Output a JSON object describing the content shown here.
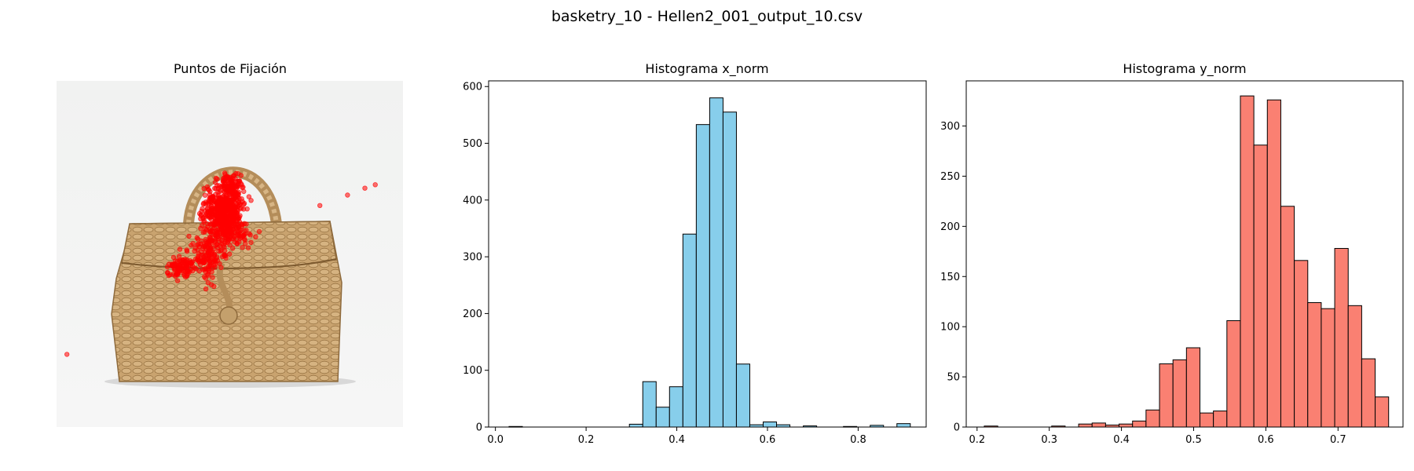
{
  "figure": {
    "suptitle": "basketry_10 - Hellen2_001_output_10.csv"
  },
  "chart_data": [
    {
      "type": "scatter",
      "title": "Puntos de Fijación",
      "axes_visible": false,
      "background_image": "wicker basket with handle on light grey background",
      "marker_color": "#ff0000",
      "points_note_x": [
        0.03,
        0.55,
        0.76,
        0.84,
        0.89,
        0.92
      ],
      "points_note_y": [
        0.79,
        0.37,
        0.36,
        0.33,
        0.31,
        0.3
      ]
    },
    {
      "type": "bar",
      "title": "Histograma x_norm",
      "color": "#87ceeb",
      "edgecolor": "#000000",
      "xlim": [
        -0.015,
        0.95
      ],
      "ylim": [
        0,
        610
      ],
      "xticks": [
        "0.0",
        "0.2",
        "0.4",
        "0.6",
        "0.8"
      ],
      "yticks": [
        "0",
        "100",
        "200",
        "300",
        "400",
        "500",
        "600"
      ],
      "bin_start": 0.03,
      "bin_width": 0.0295,
      "values": [
        1,
        0,
        0,
        0,
        0,
        0,
        0,
        0,
        0,
        5,
        80,
        35,
        71,
        340,
        533,
        580,
        555,
        111,
        4,
        9,
        4,
        0,
        2,
        0,
        0,
        1,
        0,
        3,
        0,
        6
      ]
    },
    {
      "type": "bar",
      "title": "Histograma y_norm",
      "color": "#fa8072",
      "edgecolor": "#000000",
      "xlim": [
        0.185,
        0.79
      ],
      "ylim": [
        0,
        345
      ],
      "xticks": [
        "0.2",
        "0.3",
        "0.4",
        "0.5",
        "0.6",
        "0.7"
      ],
      "yticks": [
        "0",
        "50",
        "100",
        "150",
        "200",
        "250",
        "300"
      ],
      "bin_start": 0.21,
      "bin_width": 0.01867,
      "values": [
        1,
        0,
        0,
        0,
        0,
        1,
        0,
        3,
        4,
        2,
        3,
        6,
        17,
        63,
        67,
        79,
        14,
        16,
        106,
        330,
        281,
        326,
        220,
        166,
        124,
        118,
        178,
        121,
        68,
        30
      ]
    }
  ]
}
